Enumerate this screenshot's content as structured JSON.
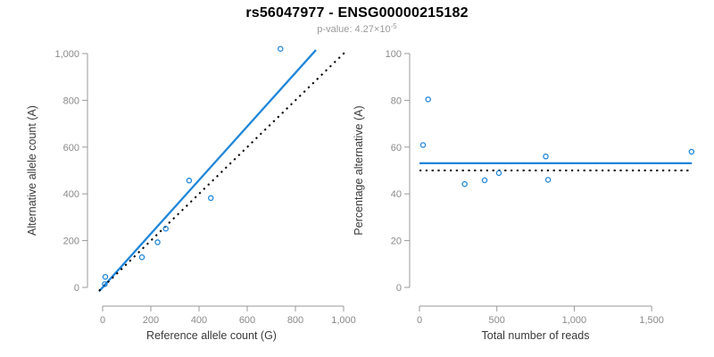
{
  "header": {
    "title": "rs56047977 - ENSG00000215182",
    "pvalue_prefix": "p-value: 4.27×10",
    "pvalue_exponent": "-5"
  },
  "colors": {
    "accent": "#1f86d9",
    "identity_line": "#000000",
    "axis": "#999999",
    "tick_label": "#8a8a8a",
    "axis_title": "#3a3a3a",
    "title": "#000000",
    "subtitle": "#9a9a9a"
  },
  "chart_data": [
    {
      "type": "scatter",
      "name": "counts-panel",
      "xlabel": "Reference allele count (G)",
      "ylabel": "Alternative allele count (A)",
      "xlim": [
        0,
        1000
      ],
      "ylim": [
        0,
        1000
      ],
      "xticks": [
        0,
        200,
        400,
        600,
        800,
        1000
      ],
      "xtick_labels": [
        "0",
        "200",
        "400",
        "600",
        "800",
        "1,000"
      ],
      "yticks": [
        0,
        200,
        400,
        600,
        800,
        1000
      ],
      "ytick_labels": [
        "0",
        "200",
        "400",
        "600",
        "800",
        "1,000"
      ],
      "grid": false,
      "points": [
        {
          "x": 9,
          "y": 14
        },
        {
          "x": 11,
          "y": 45
        },
        {
          "x": 163,
          "y": 129
        },
        {
          "x": 228,
          "y": 193
        },
        {
          "x": 262,
          "y": 251
        },
        {
          "x": 359,
          "y": 457
        },
        {
          "x": 449,
          "y": 382
        },
        {
          "x": 738,
          "y": 1020
        }
      ],
      "lines": [
        {
          "name": "fitted-line",
          "style": "solid",
          "color": "accent",
          "from": [
            -15,
            -17
          ],
          "to": [
            885,
            1015
          ]
        },
        {
          "name": "identity-line",
          "style": "dotted",
          "color": "identity_line",
          "from": [
            -15,
            -15
          ],
          "to": [
            1005,
            1005
          ]
        }
      ]
    },
    {
      "type": "scatter",
      "name": "percentage-panel",
      "xlabel": "Total number of reads",
      "ylabel": "Percentage alternative (A)",
      "xlim": [
        0,
        1760
      ],
      "ylim": [
        0,
        100
      ],
      "xticks": [
        0,
        500,
        1000,
        1500
      ],
      "xtick_labels": [
        "0",
        "500",
        "1,000",
        "1,500"
      ],
      "yticks": [
        0,
        20,
        40,
        60,
        80,
        100
      ],
      "ytick_labels": [
        "0",
        "20",
        "40",
        "60",
        "80",
        "100"
      ],
      "grid": false,
      "points": [
        {
          "x": 23,
          "y": 60.9
        },
        {
          "x": 56,
          "y": 80.4
        },
        {
          "x": 292,
          "y": 44.2
        },
        {
          "x": 421,
          "y": 45.8
        },
        {
          "x": 513,
          "y": 48.9
        },
        {
          "x": 816,
          "y": 56.0
        },
        {
          "x": 831,
          "y": 46.0
        },
        {
          "x": 1758,
          "y": 58.0
        }
      ],
      "lines": [
        {
          "name": "fitted-line",
          "style": "solid",
          "color": "accent",
          "from": [
            0,
            53.1
          ],
          "to": [
            1760,
            53.1
          ]
        },
        {
          "name": "null-line",
          "style": "dotted",
          "color": "identity_line",
          "from": [
            0,
            50
          ],
          "to": [
            1745,
            50
          ]
        }
      ]
    }
  ]
}
